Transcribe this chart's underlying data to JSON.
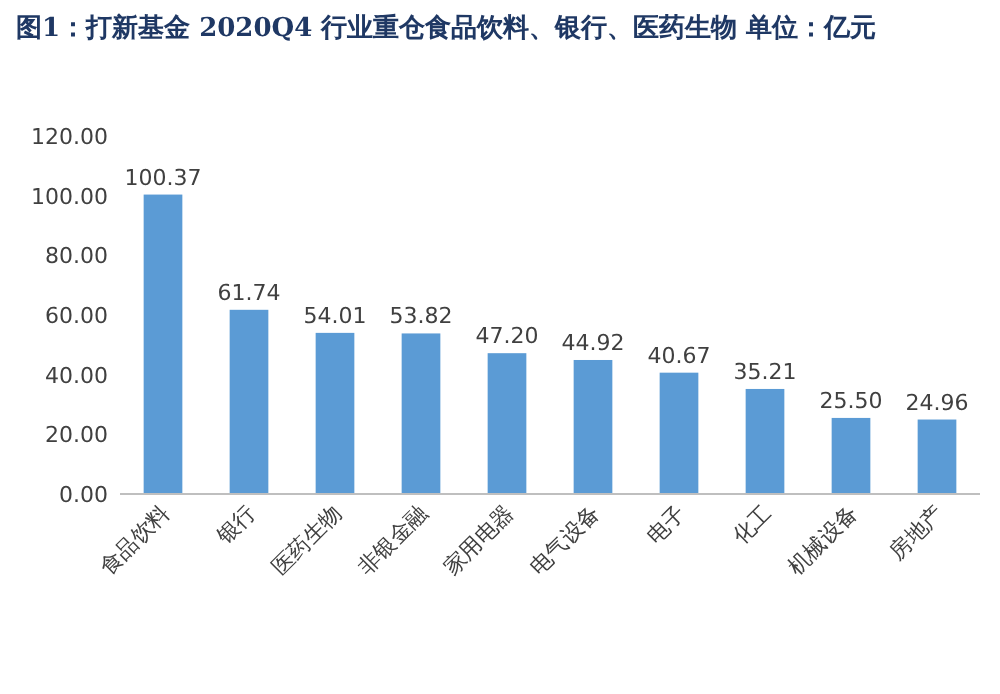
{
  "chart_data": {
    "type": "bar",
    "title": "图1：打新基金 2020Q4 行业重仓食品饮料、银行、医药生物 单位：亿元",
    "categories": [
      "食品饮料",
      "银行",
      "医药生物",
      "非银金融",
      "家用电器",
      "电气设备",
      "电子",
      "化工",
      "机械设备",
      "房地产"
    ],
    "values": [
      100.37,
      61.74,
      54.01,
      53.82,
      47.2,
      44.92,
      40.67,
      35.21,
      25.5,
      24.96
    ],
    "value_labels": [
      "100.37",
      "61.74",
      "54.01",
      "53.82",
      "47.20",
      "44.92",
      "40.67",
      "35.21",
      "25.50",
      "24.96"
    ],
    "color": "#5b9bd5",
    "ylim": [
      0,
      120
    ],
    "yticks": [
      {
        "value": 0,
        "label": "0.00"
      },
      {
        "value": 20,
        "label": "20.00"
      },
      {
        "value": 40,
        "label": "40.00"
      },
      {
        "value": 60,
        "label": "60.00"
      },
      {
        "value": 80,
        "label": "80.00"
      },
      {
        "value": 100,
        "label": "100.00"
      },
      {
        "value": 120,
        "label": "120.00"
      }
    ]
  }
}
